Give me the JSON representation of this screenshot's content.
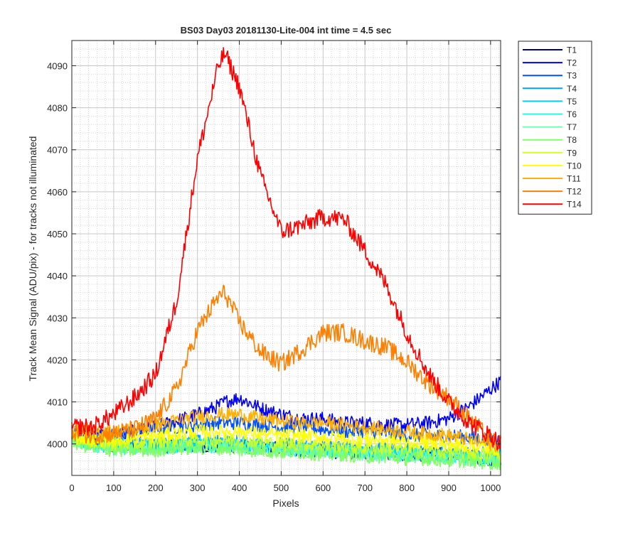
{
  "chart_data": {
    "type": "line",
    "title": "BS03 Day03 20181130-Lite-004 int time = 4.5 sec",
    "xlabel": "Pixels",
    "ylabel": "Track Mean Signal (ADU/pix) - for tracks not illuminated",
    "xlim": [
      0,
      1024
    ],
    "ylim": [
      3992.5,
      4096
    ],
    "x_ticks": [
      0,
      100,
      200,
      300,
      400,
      500,
      600,
      700,
      800,
      900,
      1000
    ],
    "y_ticks": [
      4000,
      4010,
      4020,
      4030,
      4040,
      4050,
      4060,
      4070,
      4080,
      4090
    ],
    "x_tick_labels": [
      "0",
      "100",
      "200",
      "300",
      "400",
      "500",
      "600",
      "700",
      "800",
      "900",
      "1000"
    ],
    "y_tick_labels": [
      "4000",
      "4010",
      "4020",
      "4030",
      "4040",
      "4050",
      "4060",
      "4070",
      "4080",
      "4090"
    ],
    "grid": true,
    "minor_grid": true,
    "legend_position": "outside-top-right",
    "x": [
      0,
      50,
      100,
      150,
      200,
      250,
      300,
      350,
      365,
      400,
      450,
      500,
      550,
      600,
      650,
      700,
      750,
      800,
      850,
      900,
      950,
      1000,
      1024
    ],
    "series": [
      {
        "name": "T1",
        "color": "#00008f",
        "values": [
          4001,
          4000,
          3999.5,
          3999.5,
          3999.5,
          3999.5,
          3999.5,
          3999.5,
          3999.5,
          3999.5,
          3999,
          3999,
          3998.5,
          3998.5,
          3998,
          3998,
          3998,
          3997.5,
          3997.5,
          3997.5,
          3997,
          3996.5,
          3996.5
        ]
      },
      {
        "name": "T2",
        "color": "#0000ff",
        "values": [
          4003,
          4002,
          4002,
          4003,
          4004,
          4005.5,
          4007,
          4009,
          4010,
          4011,
          4008.5,
          4007,
          4006,
          4006,
          4005,
          4005,
          4004.5,
          4004.5,
          4005,
          4006,
          4009,
          4013,
          4015
        ]
      },
      {
        "name": "T3",
        "color": "#0050ff",
        "values": [
          4003,
          4002,
          4002,
          4003,
          4003.5,
          4004,
          4004.5,
          4005,
          4005,
          4005,
          4004.5,
          4004,
          4004,
          4003.5,
          4003,
          4003,
          4002.5,
          4002,
          4002,
          4002,
          4001.5,
          4001,
          4001
        ]
      },
      {
        "name": "T4",
        "color": "#00a0ff",
        "values": [
          4001.5,
          4000.5,
          4000,
          4000,
          4000,
          4000.5,
          4000.5,
          4000.5,
          4000.5,
          4000.5,
          4000,
          4000,
          3999.5,
          3999.5,
          3999,
          3999,
          3998.5,
          3998.5,
          3998,
          3998,
          3998,
          3997.5,
          3997.5
        ]
      },
      {
        "name": "T5",
        "color": "#00d0ff",
        "values": [
          4001,
          4000,
          3999.5,
          3999.5,
          3999.5,
          3999.5,
          4000,
          4000,
          4000,
          3999.5,
          3999.5,
          3999,
          3999,
          3998.5,
          3998.5,
          3998,
          3998,
          3997.5,
          3997.5,
          3997,
          3997,
          3996.5,
          3996.5
        ]
      },
      {
        "name": "T6",
        "color": "#20ffe0",
        "values": [
          4001,
          3999.5,
          3999,
          3999,
          3999,
          3999.5,
          3999.5,
          3999.5,
          3999.5,
          3999.5,
          3999,
          3999,
          3998.5,
          3998.5,
          3998,
          3998,
          3997.5,
          3997.5,
          3997,
          3997,
          3996.5,
          3996.5,
          3996
        ]
      },
      {
        "name": "T7",
        "color": "#70ffb0",
        "values": [
          4001,
          3999.5,
          3999,
          3999,
          3999,
          3999.5,
          3999.5,
          3999.5,
          3999.5,
          3999,
          3999,
          3998.5,
          3998.5,
          3998,
          3998,
          3997.5,
          3997.5,
          3997,
          3997,
          3996.5,
          3996.5,
          3996,
          3996
        ]
      },
      {
        "name": "T8",
        "color": "#80ff60",
        "values": [
          4000.5,
          3999,
          3998.5,
          3998.5,
          3998.5,
          3999,
          3999,
          3999,
          3999,
          3998.5,
          3998.5,
          3998,
          3998,
          3997.5,
          3997.5,
          3997,
          3997,
          3996.5,
          3996.5,
          3996,
          3996,
          3995.5,
          3995.5
        ]
      },
      {
        "name": "T9",
        "color": "#d0ff20",
        "values": [
          4001.5,
          4000.5,
          4000,
          4000,
          4000.5,
          4001,
          4001,
          4001,
          4001,
          4001,
          4000.5,
          4000,
          4000,
          3999.5,
          3999.5,
          3999,
          3999,
          3998.5,
          3998.5,
          3998,
          3998,
          3997.5,
          3997.5
        ]
      },
      {
        "name": "T10",
        "color": "#ffff00",
        "values": [
          4002,
          4001,
          4001,
          4001.5,
          4002,
          4002.5,
          4003,
          4003,
          4003,
          4003,
          4002.5,
          4002,
          4002,
          4001.5,
          4001.5,
          4001,
          4001,
          4000.5,
          4000.5,
          4000,
          3999.5,
          3999,
          3999
        ]
      },
      {
        "name": "T11",
        "color": "#ffb000",
        "values": [
          4004,
          4003,
          4003,
          4003.5,
          4004.5,
          4005.5,
          4006.5,
          4007,
          4007,
          4007,
          4006,
          4005.5,
          4005,
          4005,
          4004.5,
          4004,
          4003.5,
          4003,
          4002.5,
          4002,
          4001,
          4000,
          3999.5
        ]
      },
      {
        "name": "T12",
        "color": "#ff7f00",
        "values": [
          4003,
          4002,
          4002.5,
          4003.5,
          4006,
          4013,
          4027,
          4035,
          4036,
          4029,
          4022,
          4019,
          4022.5,
          4026.5,
          4026.5,
          4024.5,
          4023,
          4019.5,
          4014.5,
          4011,
          4006,
          4001,
          4000
        ]
      },
      {
        "name": "T14",
        "color": "#ff0000",
        "values": [
          4004,
          4004,
          4007,
          4011,
          4016.5,
          4034,
          4068,
          4090,
          4093,
          4085,
          4064,
          4050.5,
          4052,
          4054,
          4053.5,
          4046,
          4038,
          4026.5,
          4017,
          4010,
          4005,
          4002,
          4000
        ]
      }
    ]
  }
}
